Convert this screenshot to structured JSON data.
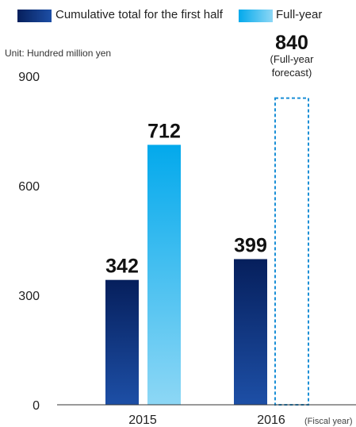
{
  "legend": {
    "items": [
      {
        "label": "Cumulative total for the first half",
        "color": "#0a3a8c"
      },
      {
        "label": "Full-year",
        "color": "#0fa8ea"
      }
    ]
  },
  "unit_label": "Unit: Hundred million yen",
  "xaxis_title": "(Fiscal year)",
  "colors": {
    "first_half_top": "#061f5c",
    "first_half_bottom": "#1d4fa6",
    "full_year_top": "#03a9ec",
    "full_year_bottom": "#8dd7f5",
    "forecast_border": "#1a8fd6",
    "axis": "#333333"
  },
  "chart_data": {
    "type": "bar",
    "categories": [
      "2015",
      "2016"
    ],
    "ylim": [
      0,
      900
    ],
    "yticks": [
      0,
      300,
      600,
      900
    ],
    "ylabel": "",
    "xlabel": "",
    "series": [
      {
        "name": "Cumulative total for the first half",
        "values": [
          342,
          399
        ]
      },
      {
        "name": "Full-year",
        "values": [
          712,
          840
        ],
        "forecast": [
          false,
          true
        ]
      }
    ],
    "data_labels": {
      "first_half": [
        "342",
        "399"
      ],
      "full_year": [
        "712",
        "840"
      ]
    },
    "annotations": [
      {
        "text": "(Full-year",
        "target": "full_year_2016"
      },
      {
        "text": "forecast)",
        "target": "full_year_2016"
      }
    ]
  }
}
